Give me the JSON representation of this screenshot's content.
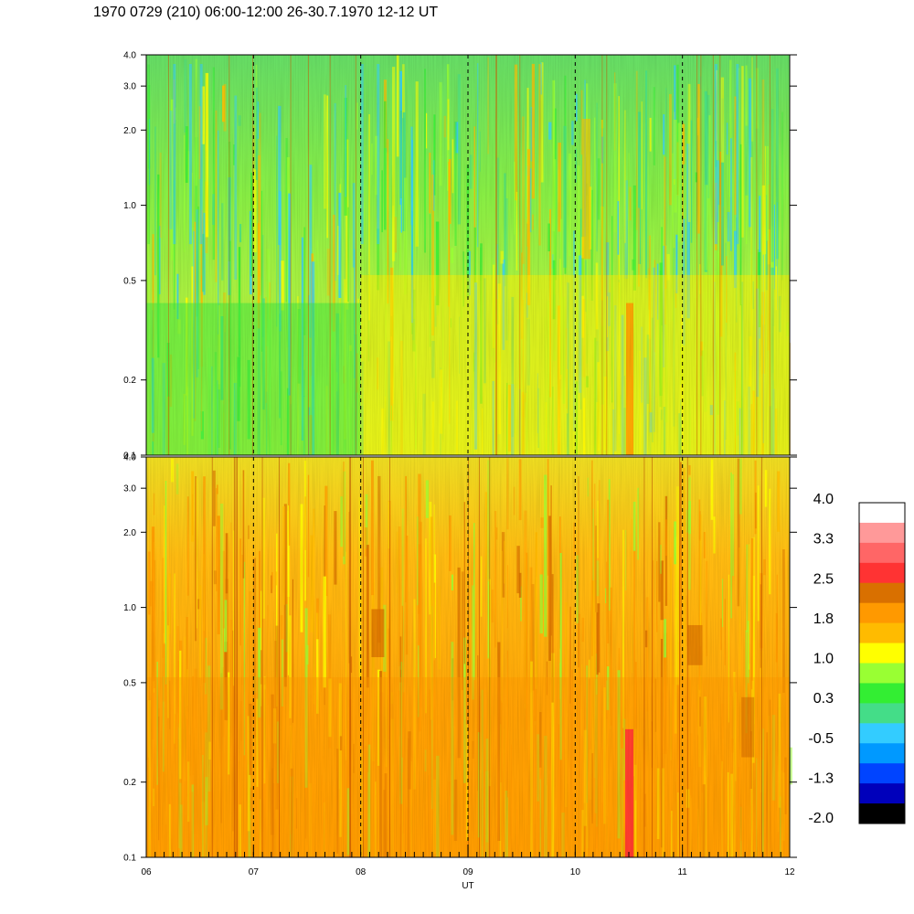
{
  "title": "1970 0729 (210) 06:00-12:00 26-30.7.1970  12-12 UT",
  "chart_data": {
    "type": "heatmap",
    "title": "1970 0729 (210) 06:00-12:00 26-30.7.1970  12-12 UT",
    "xlabel": "UT",
    "x_tick_labels": [
      "06",
      "07",
      "08",
      "09",
      "10",
      "11",
      "12"
    ],
    "x_range": [
      6,
      12
    ],
    "y_scale": "log",
    "y_range": [
      0.1,
      4.0
    ],
    "y_tick_labels": [
      "0.1",
      "0.2",
      "0.5",
      "1.0",
      "2.0",
      "3.0",
      "4.0"
    ],
    "y_tick_values": [
      0.1,
      0.2,
      0.5,
      1.0,
      2.0,
      3.0,
      4.0
    ],
    "vertical_dashed_lines_at": [
      7,
      8,
      9,
      10,
      11
    ],
    "panels": [
      {
        "name": "upper",
        "dominant_range": "0.3 to 1.0",
        "low_frequency_band": "green 06-08, yellow/orange 08-12",
        "notes": "blue/cyan streaks above 1.0 near 06:20-06:40 and 11:30; orange column near 10:30"
      },
      {
        "name": "lower",
        "dominant_range": "1.0 to 2.5",
        "low_frequency_band": "orange/dark orange, red column near 10:30",
        "notes": "dark orange patches near 08:10 and 11:05 around 0.5-1.0"
      }
    ],
    "colorbar": {
      "tick_labels": [
        "4.0",
        "3.3",
        "2.5",
        "1.8",
        "1.0",
        "0.3",
        "-0.5",
        "-1.3",
        "-2.0"
      ],
      "levels_top_to_bottom": [
        "#ffffff",
        "#ff9999",
        "#ff6666",
        "#ff3333",
        "#d97000",
        "#ff9900",
        "#ffbb00",
        "#ffff00",
        "#99ff33",
        "#33ee33",
        "#44dd88",
        "#33ccff",
        "#0099ff",
        "#0044ff",
        "#0000bb",
        "#000000"
      ]
    }
  }
}
